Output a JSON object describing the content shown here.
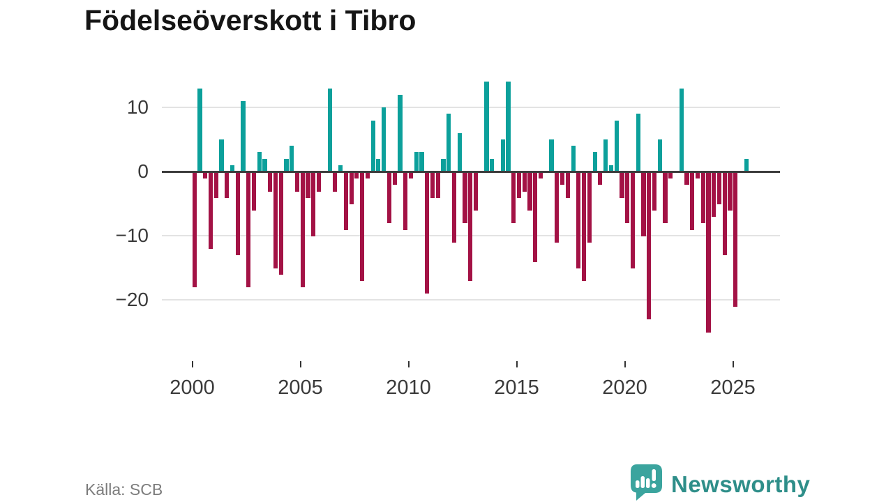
{
  "title": "Födelseöverskott i Tibro",
  "source": "Källa: SCB",
  "branding": {
    "logo_text": "Newsworthy",
    "logo_icon": "speech-bubble-barchart-icon"
  },
  "colors": {
    "positive": "#0ca09b",
    "negative": "#a31245",
    "grid": "#e3e3e3",
    "zero_line": "#3d3d3d",
    "tick_text": "#3a3a3a",
    "title_text": "#151515",
    "source_text": "#7c7c7c",
    "brand_teal": "#2e8e89",
    "brand_bubble": "#3ba49e"
  },
  "chart_data": {
    "type": "bar",
    "title": "Födelseöverskott i Tibro",
    "frequency": "quarterly",
    "start_year": 2000,
    "start_quarter": 1,
    "x_tick_labels": [
      "2000",
      "2005",
      "2010",
      "2015",
      "2020",
      "2025"
    ],
    "y_ticks": [
      10,
      0,
      -10,
      -20
    ],
    "y_tick_labels": [
      "10",
      "0",
      "−10",
      "−20"
    ],
    "ylim": [
      -26,
      15
    ],
    "grid": true,
    "legend": false,
    "positive_color_meaning": "birth surplus",
    "negative_color_meaning": "birth deficit",
    "values": [
      -18,
      13,
      -1,
      -12,
      -4,
      5,
      -4,
      1,
      -13,
      11,
      -18,
      -6,
      3,
      2,
      -3,
      -15,
      -16,
      2,
      4,
      -3,
      -18,
      -4,
      -10,
      -3,
      0,
      13,
      -3,
      1,
      -9,
      -5,
      -1,
      -17,
      -1,
      8,
      2,
      10,
      -8,
      -2,
      12,
      -9,
      -1,
      3,
      3,
      -19,
      -4,
      -4,
      2,
      9,
      -11,
      6,
      -8,
      -17,
      -6,
      0,
      14,
      2,
      0,
      5,
      14,
      -8,
      -4,
      -3,
      -6,
      -14,
      -1,
      0,
      5,
      -11,
      -2,
      -4,
      4,
      -15,
      -17,
      -11,
      3,
      -2,
      5,
      1,
      8,
      -4,
      -8,
      -15,
      9,
      -10,
      -23,
      -6,
      5,
      -8,
      -1,
      0,
      13,
      -2,
      -9,
      -1,
      -8,
      -25,
      -7,
      -5,
      -13,
      -6,
      -21,
      0,
      2
    ]
  }
}
